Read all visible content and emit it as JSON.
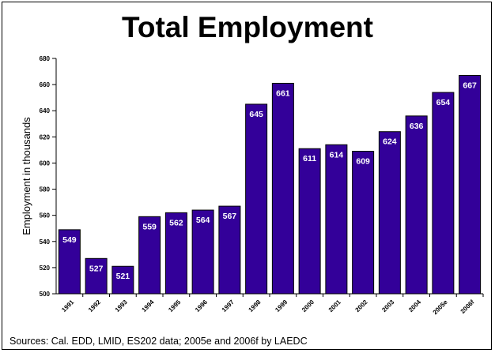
{
  "chart_data": {
    "type": "bar",
    "title": "Total Employment",
    "ylabel": "Employment in thousands",
    "xlabel": "",
    "categories": [
      "1991",
      "1992",
      "1993",
      "1994",
      "1995",
      "1996",
      "1997",
      "1998",
      "1999",
      "2000",
      "2001",
      "2002",
      "2003",
      "2004",
      "2005e",
      "2006f"
    ],
    "values": [
      549,
      527,
      521,
      559,
      562,
      564,
      567,
      645,
      661,
      611,
      614,
      609,
      624,
      636,
      654,
      667
    ],
    "data_labels": [
      "549",
      "527",
      "521",
      "559",
      "562",
      "564",
      "567",
      "645",
      "661",
      "611",
      "614",
      "609",
      "624",
      "636",
      "654",
      "667"
    ],
    "ylim": [
      500,
      680
    ],
    "yticks": [
      "500",
      "520",
      "540",
      "560",
      "580",
      "600",
      "620",
      "640",
      "660",
      "680"
    ],
    "grid": false,
    "legend": "none",
    "bar_color": "#330099",
    "label_color": "#ffffff"
  },
  "source_note": "Sources: Cal. EDD, LMID, ES202 data; 2005e and 2006f by LAEDC"
}
